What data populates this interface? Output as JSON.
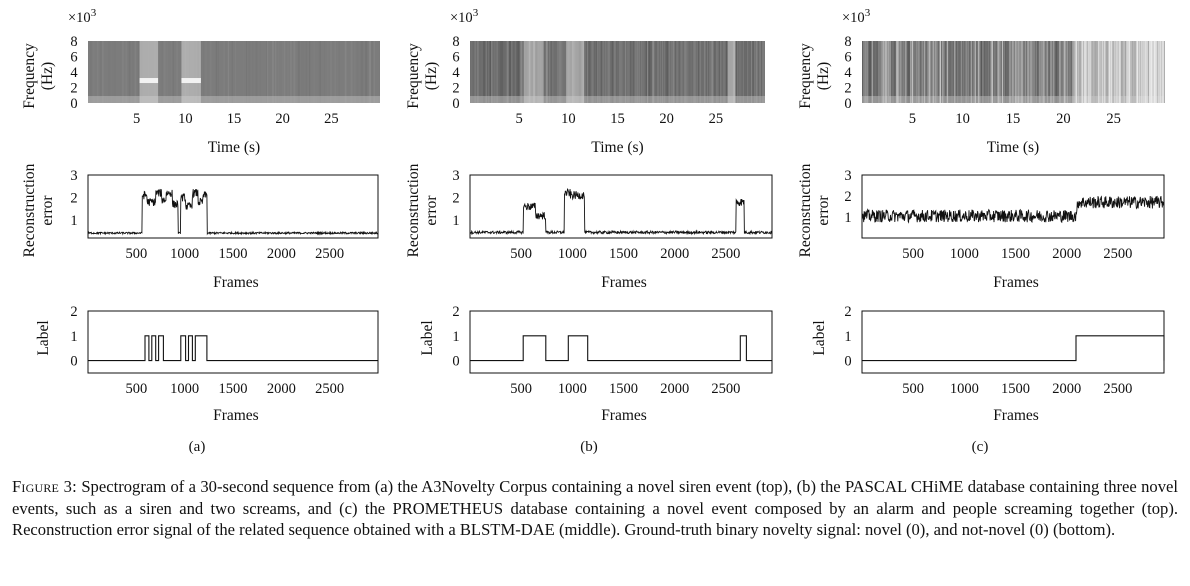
{
  "figure": {
    "panel_labels": [
      "(a)",
      "(b)",
      "(c)"
    ],
    "caption_label": "Figure 3:",
    "caption_text": " Spectrogram of a 30-second sequence from (a) the A3Novelty Corpus containing a novel siren event (top), (b) the PASCAL CHiME database containing three novel events, such as a siren and two screams, and (c) the PROMETHEUS database containing a novel event composed by an alarm and people screaming together (top). Reconstruction error signal of the related sequence obtained with a BLSTM-DAE (middle). Ground-truth binary novelty signal: novel (0), and not-novel (0) (bottom)."
  },
  "chart_data": [
    {
      "panel": "a",
      "row": "spectrogram",
      "type": "heatmap",
      "ylabel": "Frequency (Hz)",
      "ylabel_lines": [
        "Frequency",
        "(Hz)"
      ],
      "y_multiplier": "×10",
      "y_exponent": "3",
      "xlabel": "Time (s)",
      "xlim": [
        0,
        30
      ],
      "ylim": [
        0,
        8
      ],
      "yticks": [
        0,
        2,
        4,
        6,
        8
      ],
      "xticks": [
        5,
        10,
        15,
        20,
        25
      ],
      "events": [
        {
          "start": 5.3,
          "end": 7.2,
          "kind": "siren"
        },
        {
          "start": 9.6,
          "end": 11.6,
          "kind": "siren"
        }
      ],
      "siren_band_khz": 2.9
    },
    {
      "panel": "b",
      "row": "spectrogram",
      "type": "heatmap",
      "ylabel": "Frequency (Hz)",
      "ylabel_lines": [
        "Frequency",
        "(Hz)"
      ],
      "y_multiplier": "×10",
      "y_exponent": "3",
      "xlabel": "Time (s)",
      "xlim": [
        0,
        30
      ],
      "ylim": [
        0,
        8
      ],
      "yticks": [
        0,
        2,
        4,
        6,
        8
      ],
      "xticks": [
        5,
        10,
        15,
        20,
        25
      ],
      "events": [
        {
          "start": 5.5,
          "end": 7.5,
          "kind": "siren"
        },
        {
          "start": 9.8,
          "end": 11.6,
          "kind": "scream"
        },
        {
          "start": 26.2,
          "end": 27.0,
          "kind": "scream"
        }
      ]
    },
    {
      "panel": "c",
      "row": "spectrogram",
      "type": "heatmap",
      "ylabel": "Frequency (Hz)",
      "ylabel_lines": [
        "Frequency",
        "(Hz)"
      ],
      "y_multiplier": "×10",
      "y_exponent": "3",
      "xlabel": "Time (s)",
      "xlim": [
        0,
        30
      ],
      "ylim": [
        0,
        8
      ],
      "yticks": [
        0,
        2,
        4,
        6,
        8
      ],
      "xticks": [
        5,
        10,
        15,
        20,
        25
      ],
      "events": [
        {
          "start": 21.0,
          "end": 30.0,
          "kind": "alarm+screams"
        }
      ]
    },
    {
      "panel": "a",
      "row": "reconstruction_error",
      "type": "line",
      "ylabel": "Reconstruction error",
      "ylabel_lines": [
        "Reconstruction",
        "error"
      ],
      "xlabel": "Frames",
      "xlim": [
        0,
        3000
      ],
      "ylim": [
        0.2,
        3
      ],
      "yticks": [
        1,
        2,
        3
      ],
      "xticks": [
        500,
        1000,
        1500,
        2000,
        2500
      ],
      "baseline": 0.42,
      "noise": 0.04,
      "segments": [
        {
          "x0": 560,
          "x1": 610,
          "y": 2.1
        },
        {
          "x0": 610,
          "x1": 700,
          "y": 1.8
        },
        {
          "x0": 700,
          "x1": 760,
          "y": 2.2
        },
        {
          "x0": 760,
          "x1": 810,
          "y": 1.9
        },
        {
          "x0": 810,
          "x1": 870,
          "y": 2.2
        },
        {
          "x0": 870,
          "x1": 930,
          "y": 1.7
        },
        {
          "x0": 960,
          "x1": 1010,
          "y": 2.0
        },
        {
          "x0": 1010,
          "x1": 1080,
          "y": 1.6
        },
        {
          "x0": 1080,
          "x1": 1140,
          "y": 2.2
        },
        {
          "x0": 1140,
          "x1": 1190,
          "y": 1.8
        },
        {
          "x0": 1190,
          "x1": 1230,
          "y": 2.1
        }
      ]
    },
    {
      "panel": "b",
      "row": "reconstruction_error",
      "type": "line",
      "ylabel": "Reconstruction error",
      "ylabel_lines": [
        "Reconstruction",
        "error"
      ],
      "xlabel": "Frames",
      "xlim": [
        0,
        2950
      ],
      "ylim": [
        0.2,
        3
      ],
      "yticks": [
        1,
        2,
        3
      ],
      "xticks": [
        500,
        1000,
        1500,
        2000,
        2500
      ],
      "baseline": 0.45,
      "noise": 0.06,
      "segments": [
        {
          "x0": 520,
          "x1": 640,
          "y": 1.6
        },
        {
          "x0": 640,
          "x1": 740,
          "y": 1.2
        },
        {
          "x0": 920,
          "x1": 980,
          "y": 2.2
        },
        {
          "x0": 980,
          "x1": 1120,
          "y": 2.1
        },
        {
          "x0": 2600,
          "x1": 2680,
          "y": 1.8
        }
      ]
    },
    {
      "panel": "c",
      "row": "reconstruction_error",
      "type": "line",
      "ylabel": "Reconstruction error",
      "ylabel_lines": [
        "Reconstruction",
        "error"
      ],
      "xlabel": "Frames",
      "xlim": [
        0,
        2950
      ],
      "ylim": [
        0,
        3
      ],
      "yticks": [
        1,
        2,
        3
      ],
      "xticks": [
        500,
        1000,
        1500,
        2000,
        2500
      ],
      "baseline": 1.05,
      "noise": 0.3,
      "segments": [
        {
          "x0": 2100,
          "x1": 2950,
          "y": 1.7
        }
      ]
    },
    {
      "panel": "a",
      "row": "label",
      "type": "line",
      "ylabel": "Label",
      "xlabel": "Frames",
      "xlim": [
        0,
        3000
      ],
      "ylim": [
        -0.5,
        2
      ],
      "yticks": [
        0,
        1,
        2
      ],
      "xticks": [
        500,
        1000,
        1500,
        2000,
        2500
      ],
      "on_intervals": [
        [
          590,
          630
        ],
        [
          660,
          700
        ],
        [
          730,
          780
        ],
        [
          960,
          1010
        ],
        [
          1040,
          1080
        ],
        [
          1110,
          1230
        ]
      ]
    },
    {
      "panel": "b",
      "row": "label",
      "type": "line",
      "ylabel": "Label",
      "xlabel": "Frames",
      "xlim": [
        0,
        2950
      ],
      "ylim": [
        -0.5,
        2
      ],
      "yticks": [
        0,
        1,
        2
      ],
      "xticks": [
        500,
        1000,
        1500,
        2000,
        2500
      ],
      "on_intervals": [
        [
          520,
          740
        ],
        [
          960,
          1150
        ],
        [
          2640,
          2700
        ]
      ]
    },
    {
      "panel": "c",
      "row": "label",
      "type": "line",
      "ylabel": "Label",
      "xlabel": "Frames",
      "xlim": [
        0,
        2950
      ],
      "ylim": [
        -0.5,
        2
      ],
      "yticks": [
        0,
        1,
        2
      ],
      "xticks": [
        500,
        1000,
        1500,
        2000,
        2500
      ],
      "on_intervals": [
        [
          2090,
          2950
        ]
      ]
    }
  ]
}
